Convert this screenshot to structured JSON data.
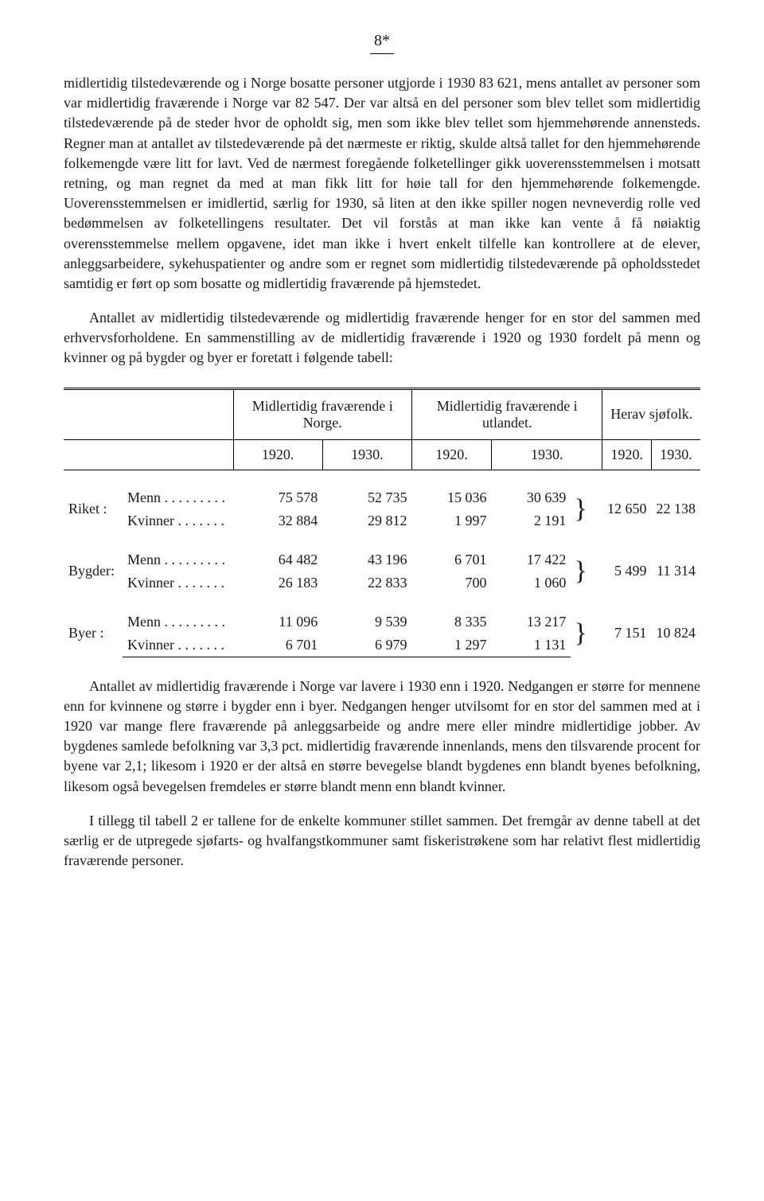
{
  "page_number": "8*",
  "paragraphs": {
    "p1": "midlertidig tilstedeværende og i Norge bosatte personer utgjorde i 1930 83 621, mens antallet av personer som var midlertidig fraværende i Norge var 82 547. Der var altså en del personer som blev tellet som midlertidig tilstedeværende på de steder hvor de opholdt sig, men som ikke blev tellet som hjemmehørende annensteds. Regner man at antallet av tilstedeværende på det nærmeste er riktig, skulde altså tallet for den hjemmehørende folkemengde være litt for lavt. Ved de nærmest foregående folketellinger gikk uoverensstemmelsen i motsatt retning, og man regnet da med at man fikk litt for høie tall for den hjemmehørende folkemengde. Uoverensstemmelsen er imidlertid, særlig for 1930, så liten at den ikke spiller nogen nevneverdig rolle ved bedømmelsen av folketellingens resultater. Det vil forstås at man ikke kan vente å få nøiaktig overensstemmelse mellem opgavene, idet man ikke i hvert enkelt tilfelle kan kontrollere at de elever, anleggsarbeidere, sykehuspatienter og andre som er regnet som midlertidig tilstedeværende på opholdsstedet samtidig er ført op som bosatte og midlertidig fraværende på hjemstedet.",
    "p2": "Antallet av midlertidig tilstedeværende og midlertidig fraværende henger for en stor del sammen med erhvervsforholdene. En sammenstilling av de midlertidig fraværende i 1920 og 1930 fordelt på menn og kvinner og på bygder og byer er foretatt i følgende tabell:",
    "p3": "Antallet av midlertidig fraværende i Norge var lavere i 1930 enn i 1920. Nedgangen er større for mennene enn for kvinnene og større i bygder enn i byer. Nedgangen henger utvilsomt for en stor del sammen med at i 1920 var mange flere fraværende på anleggsarbeide og andre mere eller mindre midlertidige jobber. Av bygdenes samlede befolkning var 3,3 pct. midlertidig fraværende innenlands, mens den tilsvarende procent for byene var 2,1; likesom i 1920 er der altså en større bevegelse blandt bygdenes enn blandt byenes befolkning, likesom også bevegelsen fremdeles er større blandt menn enn blandt kvinner.",
    "p4": "I tillegg til tabell 2 er tallene for de enkelte kommuner stillet sammen. Det fremgår av denne tabell at det særlig er de utpregede sjøfarts- og hvalfangstkommuner samt fiskeristrøkene som har relativt flest midlertidig fraværende personer."
  },
  "table": {
    "headers": {
      "col_group_1": "Midlertidig fraværende i Norge.",
      "col_group_2": "Midlertidig fraværende i utlandet.",
      "col_group_3": "Herav sjøfolk.",
      "y1920": "1920.",
      "y1930": "1930."
    },
    "row_categories": {
      "riket": "Riket :",
      "bygder": "Bygder:",
      "byer": "Byer :"
    },
    "gender_labels": {
      "menn": "Menn . . . . . . . . .",
      "kvinner": "Kvinner . . . . . . ."
    },
    "data": {
      "riket": {
        "menn": {
          "n1920": "75 578",
          "n1930": "52 735",
          "u1920": "15 036",
          "u1930": "30 639"
        },
        "kvinner": {
          "n1920": "32 884",
          "n1930": "29 812",
          "u1920": "1 997",
          "u1930": "2 191"
        },
        "sjofolk": {
          "s1920": "12 650",
          "s1930": "22 138"
        }
      },
      "bygder": {
        "menn": {
          "n1920": "64 482",
          "n1930": "43 196",
          "u1920": "6 701",
          "u1930": "17 422"
        },
        "kvinner": {
          "n1920": "26 183",
          "n1930": "22 833",
          "u1920": "700",
          "u1930": "1 060"
        },
        "sjofolk": {
          "s1920": "5 499",
          "s1930": "11 314"
        }
      },
      "byer": {
        "menn": {
          "n1920": "11 096",
          "n1930": "9 539",
          "u1920": "8 335",
          "u1930": "13 217"
        },
        "kvinner": {
          "n1920": "6 701",
          "n1930": "6 979",
          "u1920": "1 297",
          "u1930": "1 131"
        },
        "sjofolk": {
          "s1920": "7 151",
          "s1930": "10 824"
        }
      }
    }
  }
}
